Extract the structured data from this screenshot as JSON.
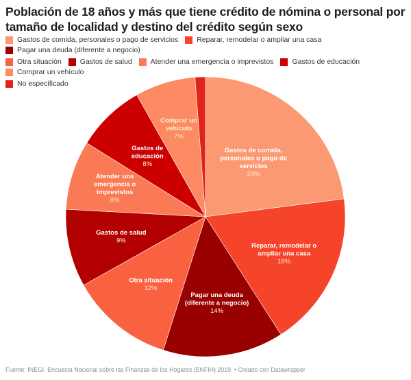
{
  "title": "Población de 18 años y más que tiene crédito de nómina o personal por tamaño de localidad y destino del crédito según sexo",
  "footer": "Fuente: INEGI. Encuesta Nacional sobre las Finanzas de los Hogares (ENFIH) 2019. • Creado con Datawrapper",
  "chart_data": {
    "type": "pie",
    "title": "Población de 18 años y más que tiene crédito de nómina o personal por tamaño de localidad y destino del crédito según sexo",
    "legend_position": "top",
    "unit": "%",
    "slices": [
      {
        "name": "Gastos de comida, personales o pago de servicios",
        "label_lines": [
          "Gastos de comida,",
          "personales o pago de",
          "servicios"
        ],
        "value": 23,
        "display": "23%",
        "color": "#fb9a72",
        "label_color": "#ffffff"
      },
      {
        "name": "Reparar, remodelar o ampliar una casa",
        "label_lines": [
          "Reparar, remodelar o",
          "ampliar una casa"
        ],
        "value": 18,
        "display": "18%",
        "color": "#f6442b",
        "label_color": "#ffffff"
      },
      {
        "name": "Pagar una deuda (diferente a negocio)",
        "label_lines": [
          "Pagar una deuda",
          "(diferente a negocio)"
        ],
        "value": 14,
        "display": "14%",
        "color": "#990000",
        "label_color": "#ffffff"
      },
      {
        "name": "Otra situación",
        "label_lines": [
          "Otra situación"
        ],
        "value": 12,
        "display": "12%",
        "color": "#fa6141",
        "label_color": "#ffffff"
      },
      {
        "name": "Gastos de salud",
        "label_lines": [
          "Gastos de salud"
        ],
        "value": 9,
        "display": "9%",
        "color": "#b30000",
        "label_color": "#ffffff"
      },
      {
        "name": "Atender una emergencia o imprevistos",
        "label_lines": [
          "Atender una",
          "emergencia o",
          "imprevistos"
        ],
        "value": 8,
        "display": "8%",
        "color": "#fa7a56",
        "label_color": "#ffffff"
      },
      {
        "name": "Gastos de educación",
        "label_lines": [
          "Gastos de",
          "educación"
        ],
        "value": 8,
        "display": "8%",
        "color": "#cc0000",
        "label_color": "#ffffff"
      },
      {
        "name": "Comprar un vehículo",
        "label_lines": [
          "Comprar un",
          "vehículo"
        ],
        "value": 7,
        "display": "7%",
        "color": "#fc8b63",
        "label_color": "#fff1cc"
      },
      {
        "name": "No especificado",
        "label_lines": [],
        "value": 1.2,
        "display": "",
        "color": "#e0231b",
        "label_color": "#ffffff"
      }
    ]
  },
  "legend": [
    {
      "label": "Gastos de comida, personales o pago de servicios",
      "color": "#fb9a72"
    },
    {
      "label": "Reparar, remodelar o ampliar una casa",
      "color": "#f6442b"
    },
    {
      "label": "Pagar una deuda (diferente a negocio)",
      "color": "#990000"
    },
    {
      "label": "Otra situación",
      "color": "#fa6141"
    },
    {
      "label": "Gastos de salud",
      "color": "#b30000"
    },
    {
      "label": "Atender una emergencia o imprevistos",
      "color": "#fa7a56"
    },
    {
      "label": "Gastos de educación",
      "color": "#cc0000"
    },
    {
      "label": "Comprar un vehículo",
      "color": "#fc8b63"
    },
    {
      "label": "No especificado",
      "color": "#e0231b"
    }
  ]
}
